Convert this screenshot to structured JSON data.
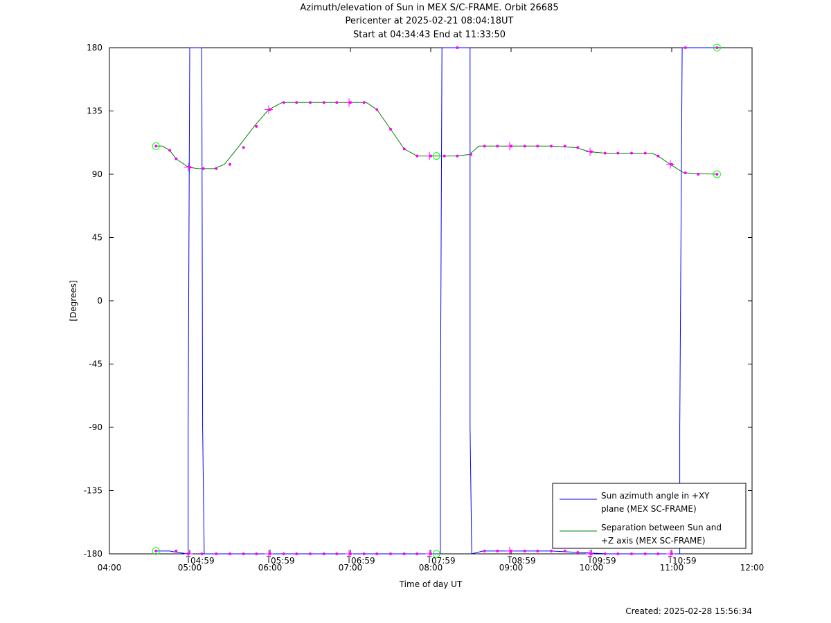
{
  "header": {
    "title": "Azimuth/elevation of Sun in MEX S/C-FRAME.  Orbit 26685",
    "pericenter": "Pericenter at 2025-02-21 08:04:18UT",
    "span": "Start at 04:34:43 End at 11:33:50"
  },
  "footer": {
    "created": "Created: 2025-02-28 15:56:34"
  },
  "chart_data": {
    "type": "line",
    "xlabel": "Time of day UT",
    "ylabel": "[Degrees]",
    "x_units": "hours of day (UT)",
    "xlim": [
      4.0,
      12.0
    ],
    "ylim": [
      -180,
      180
    ],
    "x_ticks": [
      4,
      5,
      6,
      7,
      8,
      9,
      10,
      11,
      12
    ],
    "x_tick_labels": [
      "04:00",
      "05:00",
      "06:00",
      "07:00",
      "08:00",
      "09:00",
      "10:00",
      "11:00",
      "12:00"
    ],
    "y_ticks": [
      -180,
      -135,
      -90,
      -45,
      0,
      45,
      90,
      135,
      180
    ],
    "y_tick_labels": [
      "-180",
      "-135",
      "-90",
      "-45",
      "0",
      "45",
      "90",
      "135",
      "180"
    ],
    "marker_labels": [
      {
        "x": 4.983,
        "text": "04:59"
      },
      {
        "x": 5.983,
        "text": "05:59"
      },
      {
        "x": 6.983,
        "text": "06:59"
      },
      {
        "x": 7.983,
        "text": "07:59"
      },
      {
        "x": 8.983,
        "text": "08:59"
      },
      {
        "x": 9.983,
        "text": "09:59"
      },
      {
        "x": 10.983,
        "text": "10:59"
      }
    ],
    "legend": {
      "placement": "bottom-right",
      "entries": [
        {
          "line1": "Sun azimuth angle in +XY",
          "line2": "plane (MEX SC-FRAME)",
          "color": "#0000ff"
        },
        {
          "line1": "Separation between Sun and",
          "line2": "+Z axis (MEX SC-FRAME)",
          "color": "#008000"
        }
      ]
    },
    "colors": {
      "azimuth": "#0000ff",
      "separation": "#008000",
      "markers": "#ff00ff",
      "endpoints": "#00ff00"
    },
    "series": [
      {
        "key": "azimuth",
        "points": [
          [
            4.579,
            -178
          ],
          [
            4.75,
            -178
          ],
          [
            4.85,
            -179
          ],
          [
            4.98,
            -180
          ],
          [
            4.98,
            -90
          ],
          [
            5.0,
            180
          ],
          [
            5.03,
            180
          ],
          [
            5.06,
            180
          ],
          [
            5.13,
            180
          ],
          [
            5.15,
            180
          ],
          [
            5.16,
            -90
          ],
          [
            5.18,
            -180
          ],
          [
            5.3,
            -180
          ],
          [
            5.5,
            -180
          ],
          [
            5.7,
            -180
          ],
          [
            5.85,
            -180
          ],
          [
            6.0,
            -180
          ],
          [
            6.5,
            -180
          ],
          [
            7.0,
            -180
          ],
          [
            7.5,
            -180
          ],
          [
            7.983,
            -180
          ],
          [
            8.08,
            -180
          ],
          [
            8.12,
            -180
          ],
          [
            8.12,
            -90
          ],
          [
            8.14,
            180
          ],
          [
            8.3,
            180
          ],
          [
            8.48,
            180
          ],
          [
            8.49,
            180
          ],
          [
            8.49,
            -90
          ],
          [
            8.51,
            -180
          ],
          [
            8.65,
            -178
          ],
          [
            9.0,
            -178
          ],
          [
            9.5,
            -178
          ],
          [
            9.85,
            -179
          ],
          [
            10.2,
            -180
          ],
          [
            10.6,
            -180
          ],
          [
            11.0,
            -180
          ],
          [
            11.05,
            -180
          ],
          [
            11.1,
            -180
          ],
          [
            11.1,
            -90
          ],
          [
            11.13,
            180
          ],
          [
            11.3,
            180
          ],
          [
            11.564,
            180
          ]
        ],
        "markers_x": [
          4.579,
          4.83,
          4.98,
          5.15,
          5.33,
          5.5,
          5.67,
          5.83,
          6.0,
          6.17,
          6.33,
          6.5,
          6.67,
          6.83,
          7.0,
          7.17,
          7.33,
          7.5,
          7.67,
          7.83,
          8.0,
          8.33,
          8.67,
          8.83,
          9.0,
          9.17,
          9.33,
          9.5,
          9.67,
          9.83,
          10.0,
          10.17,
          10.33,
          10.5,
          10.67,
          10.83,
          11.0,
          11.17,
          11.564
        ],
        "markers_y": [
          -178,
          -178,
          -180,
          -180,
          -180,
          -180,
          -180,
          -180,
          -180,
          -180,
          -180,
          -180,
          -180,
          -180,
          -180,
          -180,
          -180,
          -180,
          -180,
          -180,
          -180,
          180,
          -178,
          -178,
          -178,
          -178,
          -178,
          -178,
          -178,
          -179,
          -180,
          -180,
          -180,
          -180,
          -180,
          -180,
          -180,
          180,
          180
        ],
        "crosses_x": [
          4.983,
          5.983,
          6.983,
          7.983,
          8.983,
          9.983,
          10.983
        ],
        "crosses_y": [
          -180,
          -180,
          -180,
          -180,
          -178,
          -180,
          -180
        ]
      },
      {
        "key": "separation",
        "points": [
          [
            4.579,
            110
          ],
          [
            4.66,
            110
          ],
          [
            4.75,
            107
          ],
          [
            4.83,
            101
          ],
          [
            4.983,
            95
          ],
          [
            5.1,
            94
          ],
          [
            5.3,
            94
          ],
          [
            5.43,
            97
          ],
          [
            5.6,
            109
          ],
          [
            5.8,
            124
          ],
          [
            5.983,
            136
          ],
          [
            6.15,
            141
          ],
          [
            6.5,
            141
          ],
          [
            6.983,
            141
          ],
          [
            7.2,
            141
          ],
          [
            7.33,
            136
          ],
          [
            7.5,
            122
          ],
          [
            7.67,
            108
          ],
          [
            7.83,
            103
          ],
          [
            7.983,
            103
          ],
          [
            8.3,
            103
          ],
          [
            8.48,
            104
          ],
          [
            8.6,
            110
          ],
          [
            8.983,
            110
          ],
          [
            9.5,
            110
          ],
          [
            9.8,
            109
          ],
          [
            9.983,
            106
          ],
          [
            10.17,
            105
          ],
          [
            10.5,
            105
          ],
          [
            10.75,
            105
          ],
          [
            10.83,
            103
          ],
          [
            10.983,
            97
          ],
          [
            11.15,
            91
          ],
          [
            11.564,
            90
          ]
        ],
        "markers_x": [
          4.579,
          4.75,
          4.83,
          5.0,
          5.17,
          5.33,
          5.5,
          5.67,
          5.83,
          6.0,
          6.17,
          6.33,
          6.5,
          6.67,
          6.83,
          7.0,
          7.17,
          7.33,
          7.5,
          7.67,
          7.83,
          8.0,
          8.17,
          8.33,
          8.5,
          8.67,
          8.83,
          9.0,
          9.17,
          9.33,
          9.5,
          9.67,
          9.83,
          10.0,
          10.17,
          10.33,
          10.5,
          10.67,
          10.83,
          11.0,
          11.17,
          11.33,
          11.564
        ],
        "markers_y": [
          110,
          107,
          101,
          95,
          94,
          94,
          97,
          109,
          124,
          136,
          141,
          141,
          141,
          141,
          141,
          141,
          141,
          136,
          122,
          108,
          103,
          103,
          103,
          103,
          104,
          110,
          110,
          110,
          110,
          110,
          110,
          110,
          109,
          106,
          105,
          105,
          105,
          105,
          103,
          97,
          91,
          90,
          90
        ],
        "crosses_x": [
          4.983,
          5.983,
          6.983,
          7.983,
          8.983,
          9.983,
          10.983
        ],
        "crosses_y": [
          95,
          136,
          141,
          103,
          110,
          106,
          97
        ]
      }
    ],
    "endpoints": [
      {
        "x": 4.579,
        "y": 110
      },
      {
        "x": 4.579,
        "y": -178
      },
      {
        "x": 8.071,
        "y": 103
      },
      {
        "x": 8.071,
        "y": -180
      },
      {
        "x": 11.564,
        "y": 90
      },
      {
        "x": 11.564,
        "y": 180
      }
    ]
  }
}
